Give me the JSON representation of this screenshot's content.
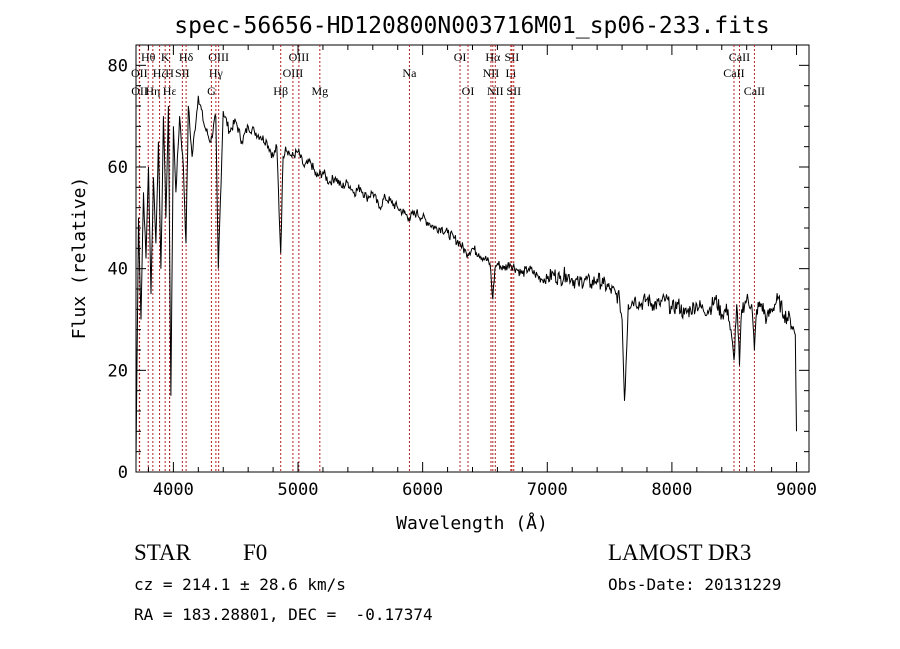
{
  "chart_data": {
    "type": "line",
    "title": "spec-56656-HD120800N003716M01_sp06-233.fits",
    "xlabel": "Wavelength (Å)",
    "ylabel": "Flux (relative)",
    "xlim": [
      3700,
      9100
    ],
    "ylim": [
      0,
      84
    ],
    "xticks": [
      4000,
      5000,
      6000,
      7000,
      8000,
      9000
    ],
    "yticks": [
      0,
      20,
      40,
      60,
      80
    ],
    "series": [
      {
        "name": "spectrum",
        "x": [
          3700,
          3720,
          3740,
          3760,
          3780,
          3800,
          3820,
          3840,
          3860,
          3880,
          3900,
          3920,
          3940,
          3960,
          3980,
          4000,
          4020,
          4050,
          4080,
          4101,
          4120,
          4150,
          4200,
          4250,
          4300,
          4340,
          4360,
          4400,
          4450,
          4500,
          4550,
          4600,
          4650,
          4700,
          4750,
          4800,
          4830,
          4861,
          4880,
          4900,
          4950,
          5000,
          5050,
          5100,
          5150,
          5200,
          5250,
          5300,
          5350,
          5400,
          5450,
          5500,
          5550,
          5600,
          5650,
          5700,
          5750,
          5800,
          5850,
          5890,
          5950,
          6000,
          6050,
          6100,
          6150,
          6200,
          6250,
          6300,
          6350,
          6400,
          6450,
          6500,
          6540,
          6563,
          6580,
          6600,
          6650,
          6700,
          6750,
          6800,
          6850,
          6900,
          6950,
          7000,
          7050,
          7100,
          7150,
          7200,
          7250,
          7300,
          7350,
          7400,
          7450,
          7500,
          7550,
          7580,
          7600,
          7620,
          7650,
          7700,
          7750,
          7800,
          7850,
          7900,
          7950,
          8000,
          8050,
          8100,
          8150,
          8200,
          8250,
          8300,
          8350,
          8400,
          8450,
          8498,
          8520,
          8542,
          8560,
          8600,
          8640,
          8662,
          8680,
          8720,
          8760,
          8800,
          8850,
          8900,
          8950,
          8990,
          9000
        ],
        "values": [
          2,
          50,
          30,
          55,
          42,
          60,
          35,
          58,
          45,
          65,
          40,
          70,
          50,
          72,
          15,
          68,
          55,
          70,
          60,
          45,
          72,
          62,
          74,
          68,
          65,
          70,
          40,
          71,
          67,
          69,
          65,
          68,
          67,
          66,
          65,
          62,
          64,
          43,
          62,
          64,
          62,
          63,
          60,
          61,
          58,
          59,
          57,
          58,
          56,
          57,
          55,
          56,
          54,
          55,
          52,
          54,
          53,
          52,
          51,
          50,
          51,
          50,
          49,
          48,
          48,
          47,
          46,
          45,
          43,
          44,
          43,
          42,
          41,
          34,
          40,
          41,
          40,
          41,
          40,
          39,
          40,
          39,
          38,
          38,
          39,
          38,
          39,
          38,
          37,
          38,
          37,
          38,
          37,
          36,
          35,
          34,
          30,
          14,
          33,
          34,
          33,
          34,
          33,
          33,
          34,
          32,
          33,
          31,
          32,
          33,
          32,
          32,
          34,
          31,
          32,
          22,
          33,
          21,
          32,
          34,
          33,
          24,
          32,
          33,
          30,
          32,
          34,
          31,
          30,
          27,
          8
        ]
      }
    ],
    "lines": [
      {
        "label": "OII",
        "wavelength": 3727,
        "row": 2
      },
      {
        "label": "OII",
        "wavelength": 3729,
        "row": 3
      },
      {
        "label": "Hθ",
        "wavelength": 3798,
        "row": 1
      },
      {
        "label": "Hη",
        "wavelength": 3835,
        "row": 3
      },
      {
        "label": "Hζ",
        "wavelength": 3889,
        "row": 2
      },
      {
        "label": "K",
        "wavelength": 3934,
        "row": 1
      },
      {
        "label": "H",
        "wavelength": 3969,
        "row": 2
      },
      {
        "label": "Hε",
        "wavelength": 3970,
        "row": 3
      },
      {
        "label": "SII",
        "wavelength": 4072,
        "row": 2
      },
      {
        "label": "Hδ",
        "wavelength": 4102,
        "row": 1
      },
      {
        "label": "OIII",
        "wavelength": 4363,
        "row": 1
      },
      {
        "label": "Hγ",
        "wavelength": 4341,
        "row": 2
      },
      {
        "label": "G",
        "wavelength": 4305,
        "row": 3
      },
      {
        "label": "Hβ",
        "wavelength": 4861,
        "row": 3
      },
      {
        "label": "OIII",
        "wavelength": 5007,
        "row": 1
      },
      {
        "label": "OIII",
        "wavelength": 4959,
        "row": 2
      },
      {
        "label": "Mg",
        "wavelength": 5175,
        "row": 3
      },
      {
        "label": "Na",
        "wavelength": 5894,
        "row": 2
      },
      {
        "label": "OI",
        "wavelength": 6300,
        "row": 1
      },
      {
        "label": "OI",
        "wavelength": 6364,
        "row": 3
      },
      {
        "label": "Hα",
        "wavelength": 6563,
        "row": 1
      },
      {
        "label": "SII",
        "wavelength": 6716,
        "row": 1
      },
      {
        "label": "NII",
        "wavelength": 6548,
        "row": 2
      },
      {
        "label": "Li",
        "wavelength": 6708,
        "row": 2
      },
      {
        "label": "NII",
        "wavelength": 6583,
        "row": 3
      },
      {
        "label": "SII",
        "wavelength": 6731,
        "row": 3
      },
      {
        "label": "CaII",
        "wavelength": 8542,
        "row": 1
      },
      {
        "label": "CaII",
        "wavelength": 8498,
        "row": 2
      },
      {
        "label": "CaII",
        "wavelength": 8662,
        "row": 3
      }
    ]
  },
  "info": {
    "class_label": "STAR",
    "subclass": "F0",
    "survey": "LAMOST DR3",
    "cz": "cz = 214.1 ± 28.6 km/s",
    "obs_date": "Obs-Date: 20131229",
    "radec": "RA = 183.28801, DEC =  -0.17374"
  }
}
